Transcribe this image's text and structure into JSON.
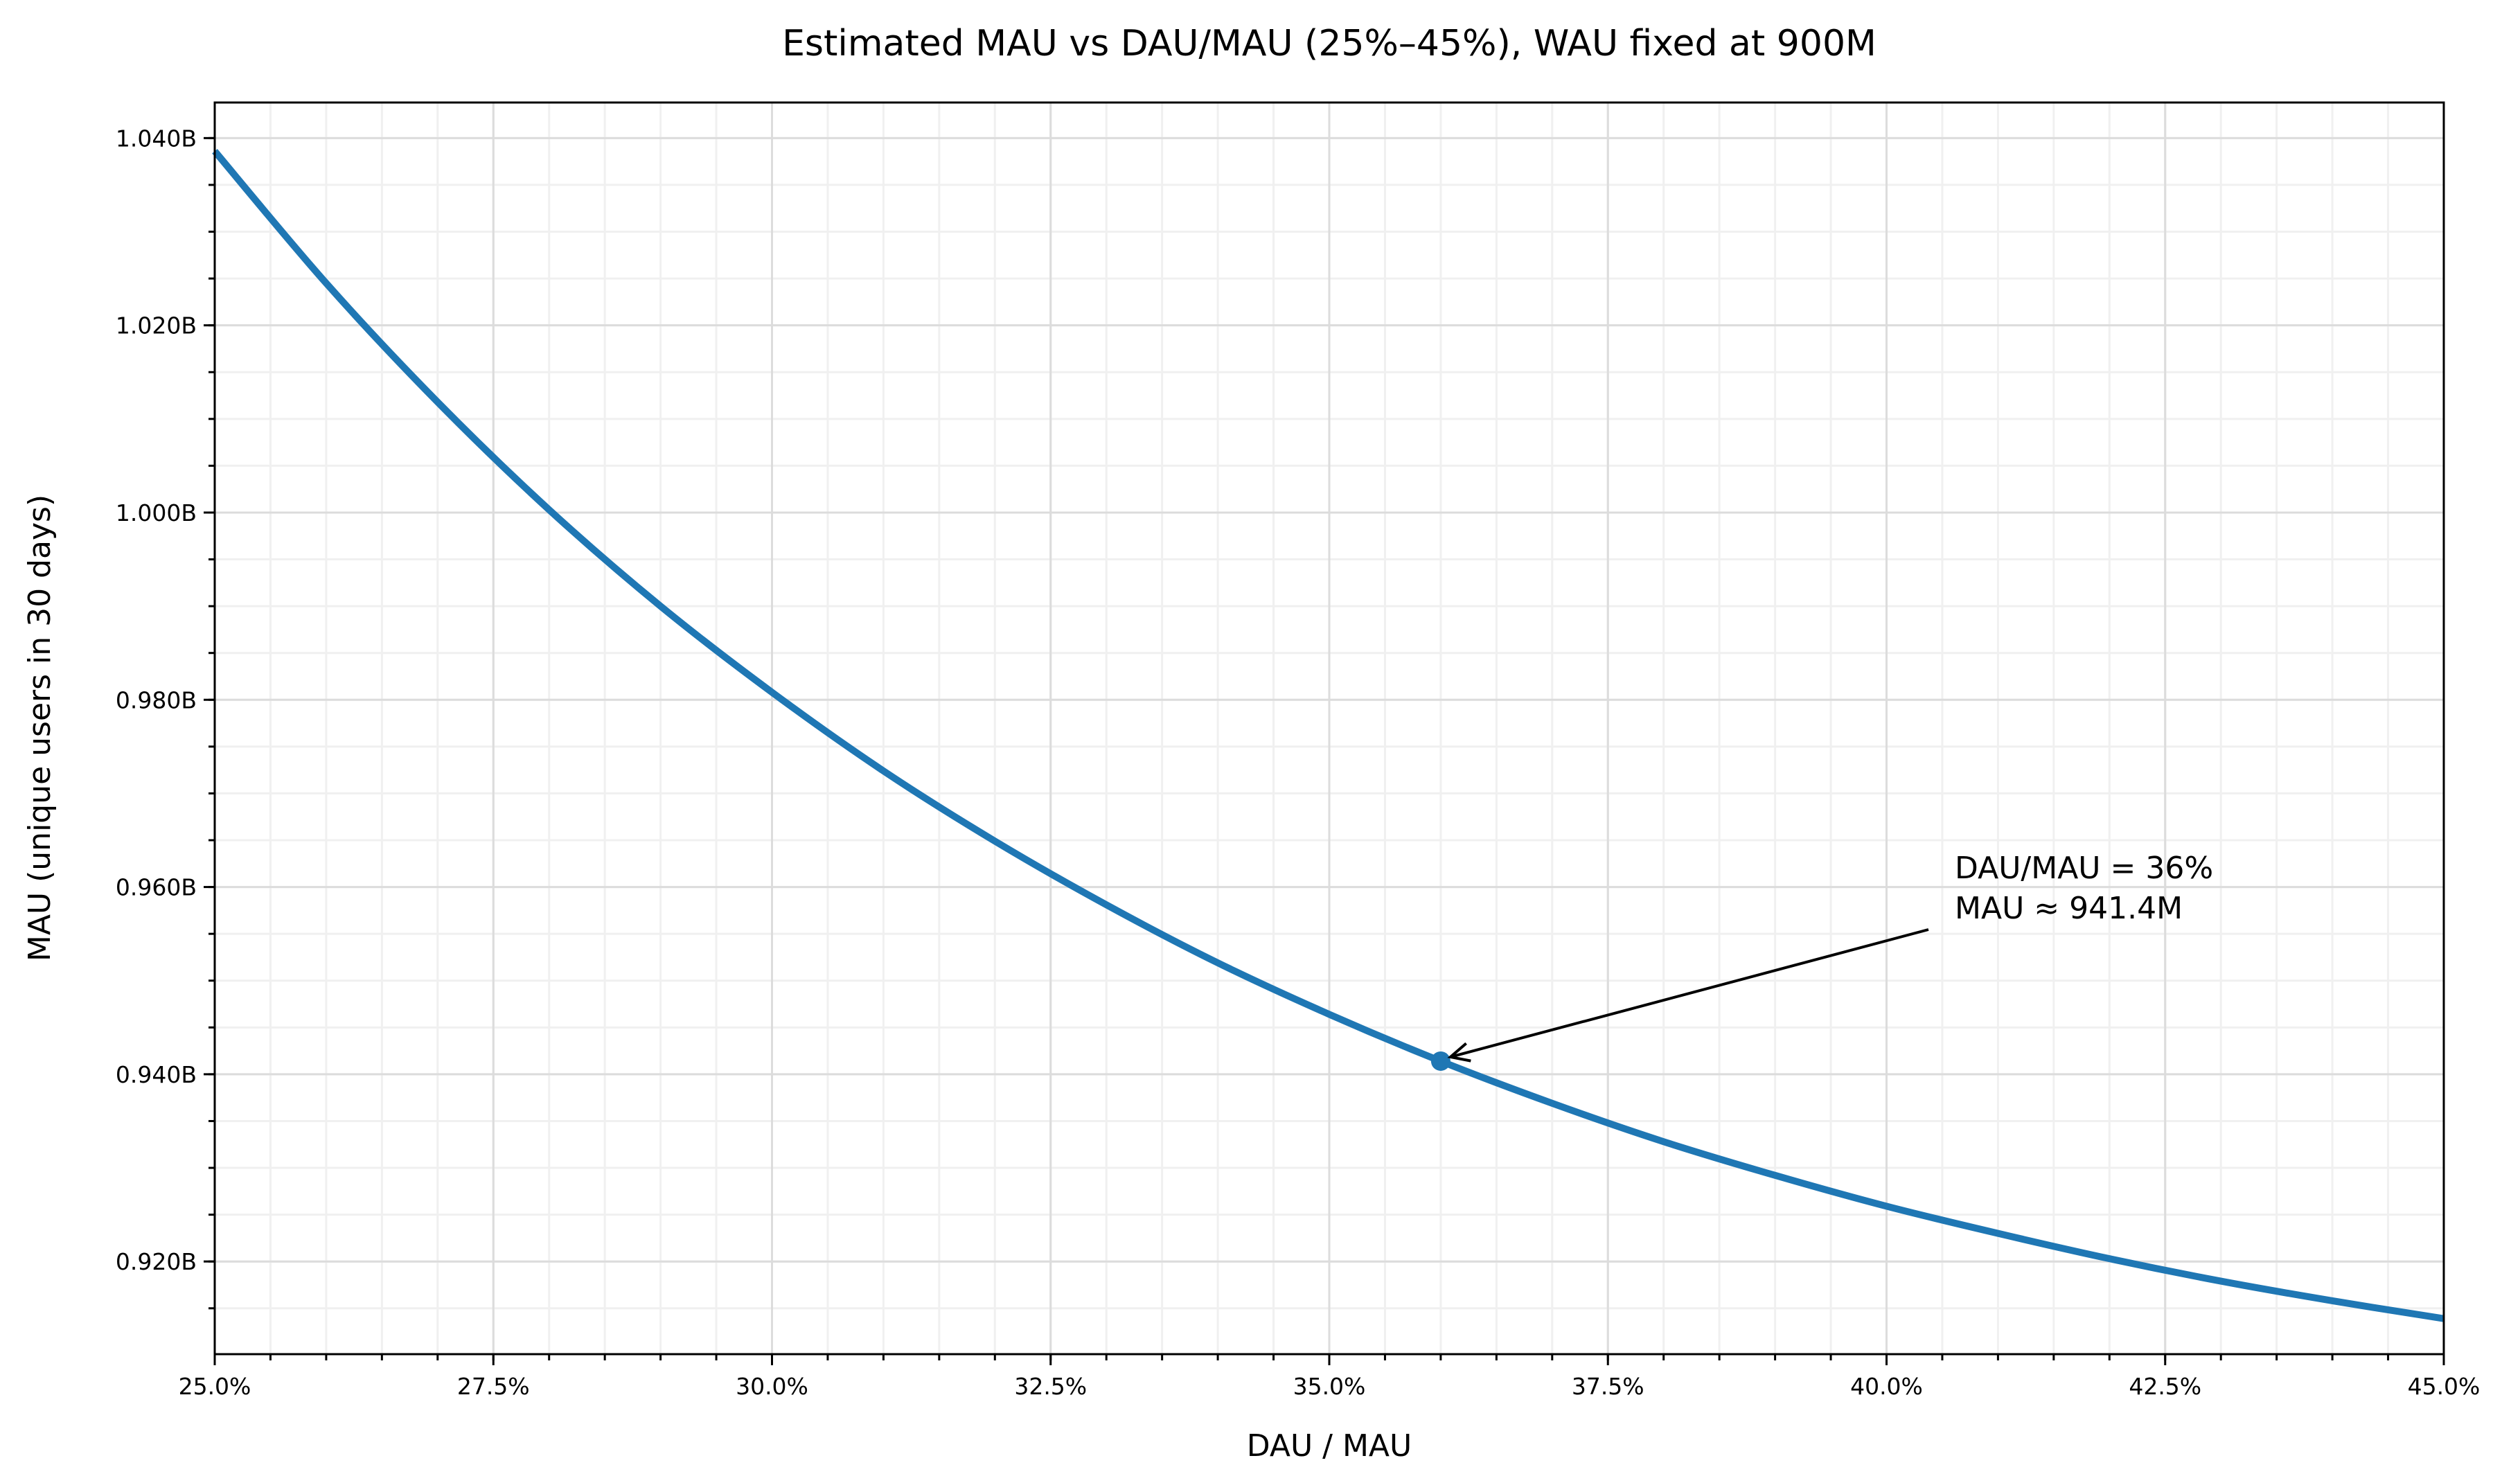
{
  "chart_data": {
    "type": "line",
    "title": "Estimated MAU vs DAU/MAU (25%–45%), WAU fixed at 900M",
    "xlabel": "DAU / MAU",
    "ylabel": "MAU (unique users in 30 days)",
    "xlim": [
      25.0,
      45.0
    ],
    "ylim_millions": [
      910.1,
      1043.8
    ],
    "grid": "major and minor",
    "x_ticks": [
      25.0,
      27.5,
      30.0,
      32.5,
      35.0,
      37.5,
      40.0,
      42.5,
      45.0
    ],
    "x_tick_labels": [
      "25.0%",
      "27.5%",
      "30.0%",
      "32.5%",
      "35.0%",
      "37.5%",
      "40.0%",
      "42.5%",
      "45.0%"
    ],
    "y_ticks_millions": [
      920,
      940,
      960,
      980,
      1000,
      1020,
      1040
    ],
    "y_tick_labels": [
      "0.920B",
      "0.940B",
      "0.960B",
      "0.980B",
      "1.000B",
      "1.020B",
      "1.040B"
    ],
    "series": [
      {
        "name": "Estimated MAU",
        "color": "#1f77b4",
        "x": [
          25,
          26,
          27,
          28,
          29,
          30,
          31,
          32,
          33,
          34,
          35,
          36,
          37,
          38,
          39,
          40,
          41,
          42,
          43,
          44,
          45
        ],
        "y_millions": [
          1038.6,
          1024.5,
          1011.8,
          1000.3,
          990.0,
          980.8,
          972.4,
          964.9,
          958.1,
          951.9,
          946.4,
          941.4,
          936.9,
          932.8,
          929.2,
          925.9,
          923.0,
          920.3,
          917.9,
          915.8,
          913.9
        ]
      }
    ],
    "highlight": {
      "x": 36,
      "y_millions": 941.4,
      "color": "#1f77b4"
    },
    "annotation": {
      "line1": "DAU/MAU = 36%",
      "line2": "MAU ≈ 941.4M"
    }
  }
}
